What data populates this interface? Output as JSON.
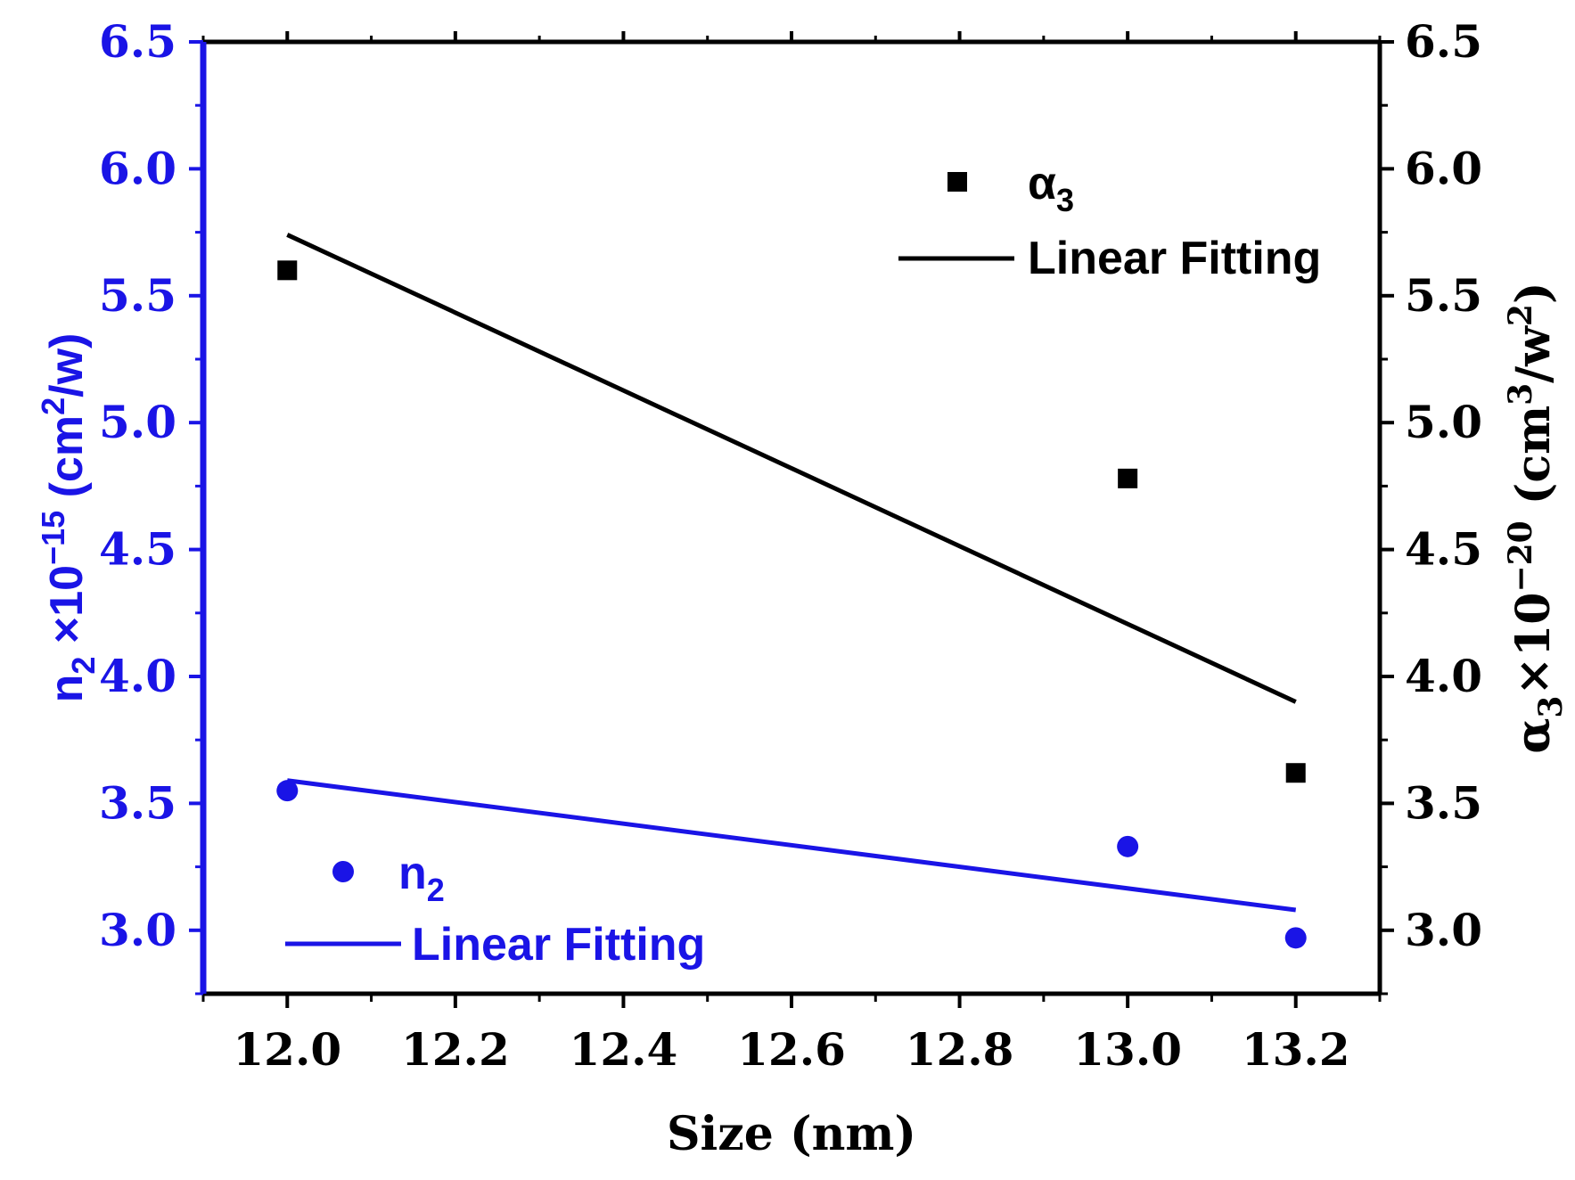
{
  "chart_data": {
    "type": "scatter",
    "xlabel": "Size (nm)",
    "x_ticks": [
      "12.0",
      "12.2",
      "12.4",
      "12.6",
      "12.8",
      "13.0",
      "13.2"
    ],
    "xlim": [
      11.9,
      13.3
    ],
    "left_axis": {
      "label_parts": [
        "n",
        "2",
        " ×10",
        "−15",
        " (cm",
        "2",
        "/w)"
      ],
      "ylim": [
        2.75,
        6.5
      ],
      "ticks": [
        "3.0",
        "3.5",
        "4.0",
        "4.5",
        "5.0",
        "5.5",
        "6.0",
        "6.5"
      ],
      "color": "#1a14e6"
    },
    "right_axis": {
      "label_parts": [
        "α",
        "3",
        "×10",
        "−20",
        " (cm",
        "3",
        "/w",
        "2",
        ")"
      ],
      "ylim": [
        2.75,
        6.5
      ],
      "ticks": [
        "3.0",
        "3.5",
        "4.0",
        "4.5",
        "5.0",
        "5.5",
        "6.0",
        "6.5"
      ],
      "color": "#000000"
    },
    "series": [
      {
        "name": "α3",
        "legend_main": "α",
        "legend_sub": "3",
        "marker": "square",
        "axis": "right",
        "color": "#000000",
        "points": [
          [
            12.0,
            5.6
          ],
          [
            13.0,
            4.78
          ],
          [
            13.2,
            3.62
          ]
        ]
      },
      {
        "name": "Linear Fitting",
        "legend_label": "Linear Fitting",
        "type": "line",
        "axis": "right",
        "color": "#000000",
        "points": [
          [
            12.0,
            5.74
          ],
          [
            13.2,
            3.9
          ]
        ]
      },
      {
        "name": "n2",
        "legend_main": "n",
        "legend_sub": "2",
        "marker": "circle",
        "axis": "left",
        "color": "#1a14e6",
        "points": [
          [
            12.0,
            3.55
          ],
          [
            13.0,
            3.33
          ],
          [
            13.2,
            2.97
          ]
        ]
      },
      {
        "name": "Linear Fitting",
        "legend_label": "Linear Fitting",
        "type": "line",
        "axis": "left",
        "color": "#1a14e6",
        "points": [
          [
            12.0,
            3.59
          ],
          [
            13.2,
            3.08
          ]
        ]
      }
    ]
  }
}
